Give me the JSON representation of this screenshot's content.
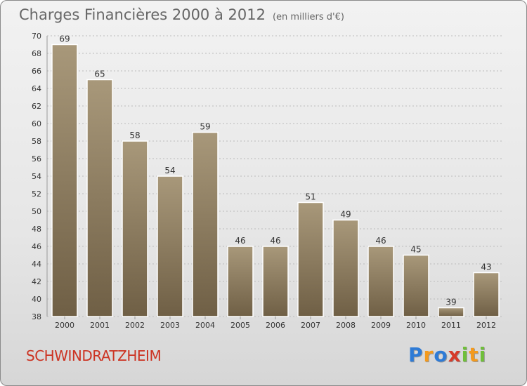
{
  "title": "Charges Financières 2000 à 2012",
  "subtitle": "(en milliers d'€)",
  "commune": "SCHWINDRATZHEIM",
  "logo": {
    "text": "Proxiti",
    "letters": [
      "P",
      "r",
      "o",
      "x",
      "i",
      "t",
      "i"
    ],
    "colors": [
      "#2e7bd6",
      "#f39a1e",
      "#2e7bd6",
      "#d63b2a",
      "#6fbf3a",
      "#f39a1e",
      "#6fbf3a"
    ]
  },
  "colors": {
    "bar_top": "#a8987a",
    "bar_bottom": "#6f5f45",
    "bar_edge": "#ffffff",
    "grid": "#bbbbbb",
    "axis_text": "#333333"
  },
  "chart_data": {
    "type": "bar",
    "title": "Charges Financières 2000 à 2012",
    "subtitle": "(en milliers d'€)",
    "categories": [
      "2000",
      "2001",
      "2002",
      "2003",
      "2004",
      "2005",
      "2006",
      "2007",
      "2008",
      "2009",
      "2010",
      "2011",
      "2012"
    ],
    "values": [
      69,
      65,
      58,
      54,
      59,
      46,
      46,
      51,
      49,
      46,
      45,
      39,
      43
    ],
    "xlabel": "",
    "ylabel": "",
    "ylim": [
      38,
      70
    ],
    "yticks": [
      38,
      40,
      42,
      44,
      46,
      48,
      50,
      52,
      54,
      56,
      58,
      60,
      62,
      64,
      66,
      68,
      70
    ],
    "grid": true,
    "legend": "none"
  }
}
